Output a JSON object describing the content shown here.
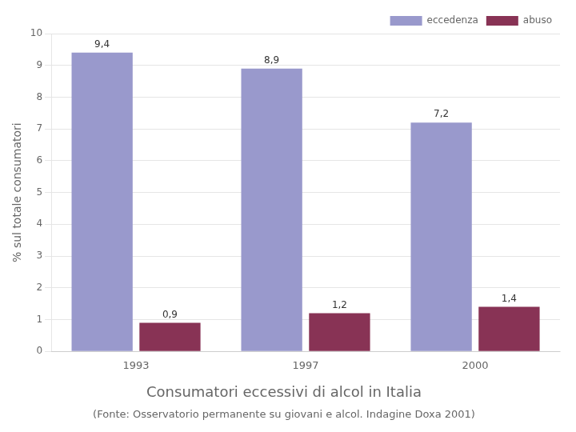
{
  "chart_data": {
    "type": "bar",
    "title": "Consumatori eccessivi di alcol in Italia",
    "subtitle": "(Fonte: Osservatorio permanente su giovani e alcol. Indagine Doxa 2001)",
    "categories": [
      "1993",
      "1997",
      "2000"
    ],
    "series": [
      {
        "name": "eccedenza",
        "color": "#9999cc",
        "values": [
          9.4,
          8.9,
          7.2
        ],
        "value_labels": [
          "9,4",
          "8,9",
          "7,2"
        ]
      },
      {
        "name": "abuso",
        "color": "#883355",
        "values": [
          0.9,
          1.2,
          1.4
        ],
        "value_labels": [
          "0,9",
          "1,2",
          "1,4"
        ]
      }
    ],
    "ylabel": "% sul totale consumatori",
    "ylim": [
      0,
      10
    ],
    "yticks": [
      0,
      1,
      2,
      3,
      4,
      5,
      6,
      7,
      8,
      9,
      10
    ],
    "grid": true,
    "legend": "upper right",
    "data_labels": true
  }
}
